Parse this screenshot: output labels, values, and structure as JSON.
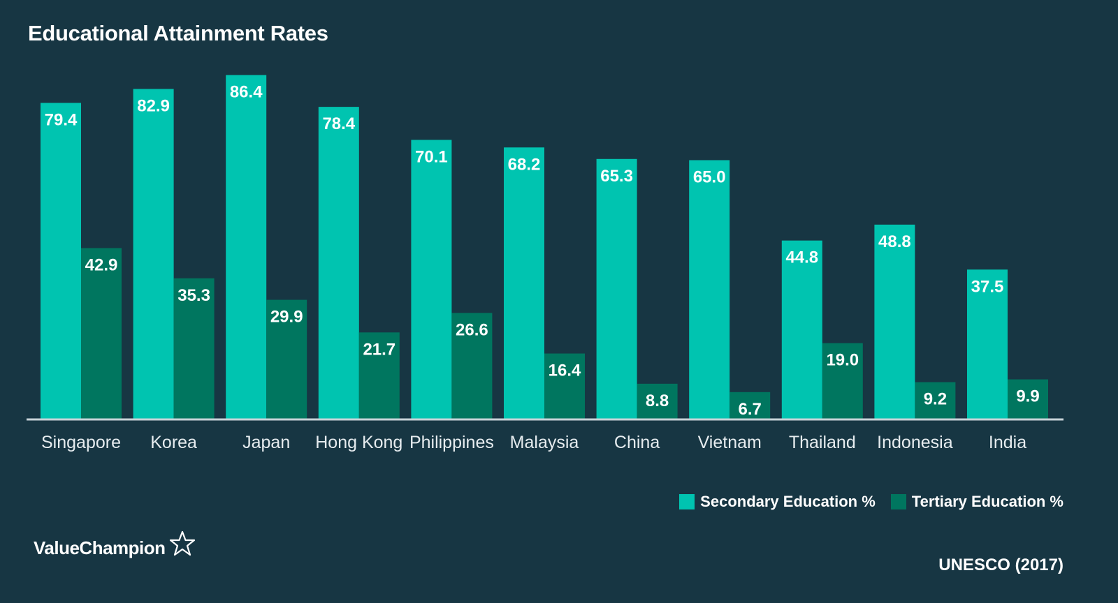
{
  "header": {
    "title": "Educational Attainment Rates"
  },
  "colors": {
    "background": "#173643",
    "secondary": "#00c4b0",
    "tertiary": "#00765f",
    "axis": "#c8d3d8"
  },
  "chart_data": {
    "type": "bar",
    "title": "Educational Attainment Rates",
    "xlabel": "",
    "ylabel": "",
    "ylim": [
      0,
      100
    ],
    "grid": false,
    "legend_position": "bottom-right",
    "categories": [
      "Singapore",
      "Korea",
      "Japan",
      "Hong Kong",
      "Philippines",
      "Malaysia",
      "China",
      "Vietnam",
      "Thailand",
      "Indonesia",
      "India"
    ],
    "series": [
      {
        "name": "Secondary Education %",
        "color": "#00c4b0",
        "values": [
          79.4,
          82.9,
          86.4,
          78.4,
          70.1,
          68.2,
          65.3,
          65.0,
          44.8,
          48.8,
          37.5
        ]
      },
      {
        "name": "Tertiary Education %",
        "color": "#00765f",
        "values": [
          42.9,
          35.3,
          29.9,
          21.7,
          26.6,
          16.4,
          8.8,
          6.7,
          19.0,
          9.2,
          9.9
        ]
      }
    ]
  },
  "footer": {
    "brand": "ValueChampion",
    "brand_icon": "star-outline-icon",
    "source": "UNESCO (2017)"
  }
}
